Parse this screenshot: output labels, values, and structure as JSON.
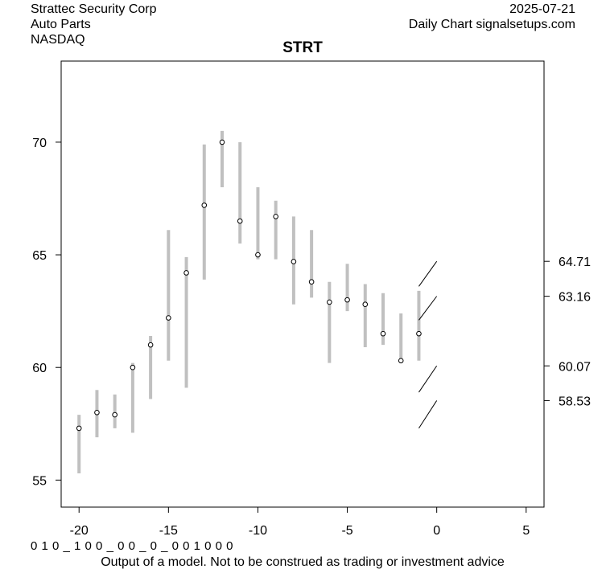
{
  "header": {
    "company": "Strattec Security Corp",
    "sector": "Auto Parts",
    "exchange": "NASDAQ",
    "date": "2025-07-21",
    "source": "Daily Chart signalsetups.com"
  },
  "footer": {
    "signal_code": "0 1 0 _ 1 0 0 _ 0 0 _ 0 _ 0 0 1 0 0 0",
    "disclaimer": "Output of a model. Not to be construed as trading or investment advice"
  },
  "chart_data": {
    "type": "ohlc-range",
    "title": "STRT",
    "xlabel": "",
    "ylabel": "",
    "xlim": [
      -21,
      6
    ],
    "ylim": [
      53.8,
      73.6
    ],
    "x_ticks": [
      -20,
      -15,
      -10,
      -5,
      0,
      5
    ],
    "y_ticks": [
      55,
      60,
      65,
      70
    ],
    "bars": [
      {
        "x": -20,
        "low": 55.3,
        "high": 57.9,
        "close": 57.3
      },
      {
        "x": -19,
        "low": 56.9,
        "high": 59.0,
        "close": 58.0
      },
      {
        "x": -18,
        "low": 57.3,
        "high": 58.8,
        "close": 57.9
      },
      {
        "x": -17,
        "low": 57.1,
        "high": 60.2,
        "close": 60.0
      },
      {
        "x": -16,
        "low": 58.6,
        "high": 61.4,
        "close": 61.0
      },
      {
        "x": -15,
        "low": 60.3,
        "high": 66.1,
        "close": 62.2
      },
      {
        "x": -14,
        "low": 59.1,
        "high": 64.9,
        "close": 64.2
      },
      {
        "x": -13,
        "low": 63.9,
        "high": 69.9,
        "close": 67.2
      },
      {
        "x": -12,
        "low": 68.0,
        "high": 70.5,
        "close": 70.0
      },
      {
        "x": -11,
        "low": 65.5,
        "high": 70.0,
        "close": 66.5
      },
      {
        "x": -10,
        "low": 64.8,
        "high": 68.0,
        "close": 65.0
      },
      {
        "x": -9,
        "low": 64.8,
        "high": 67.4,
        "close": 66.7
      },
      {
        "x": -8,
        "low": 62.8,
        "high": 66.7,
        "close": 64.7
      },
      {
        "x": -7,
        "low": 63.1,
        "high": 66.1,
        "close": 63.8
      },
      {
        "x": -6,
        "low": 60.2,
        "high": 63.8,
        "close": 62.9
      },
      {
        "x": -5,
        "low": 62.5,
        "high": 64.6,
        "close": 63.0
      },
      {
        "x": -4,
        "low": 60.9,
        "high": 63.7,
        "close": 62.8
      },
      {
        "x": -3,
        "low": 61.0,
        "high": 63.3,
        "close": 61.5
      },
      {
        "x": -2,
        "low": 60.3,
        "high": 62.4,
        "close": 60.3
      },
      {
        "x": -1,
        "low": 60.3,
        "high": 63.4,
        "close": 61.5
      }
    ],
    "projections": [
      {
        "x0": -1,
        "y0": 63.6,
        "x1": 0,
        "y1": 64.71
      },
      {
        "x0": -1,
        "y0": 62.1,
        "x1": 0,
        "y1": 63.16
      },
      {
        "x0": -1,
        "y0": 58.9,
        "x1": 0,
        "y1": 60.07
      },
      {
        "x0": -1,
        "y0": 57.3,
        "x1": 0,
        "y1": 58.53
      }
    ],
    "right_labels": [
      64.71,
      63.16,
      60.07,
      58.53
    ],
    "right_label_text": [
      "64.71",
      "63.16",
      "60.07",
      "58.53"
    ],
    "bar_color": "#c0c0c0",
    "projection_color": "#000000"
  }
}
